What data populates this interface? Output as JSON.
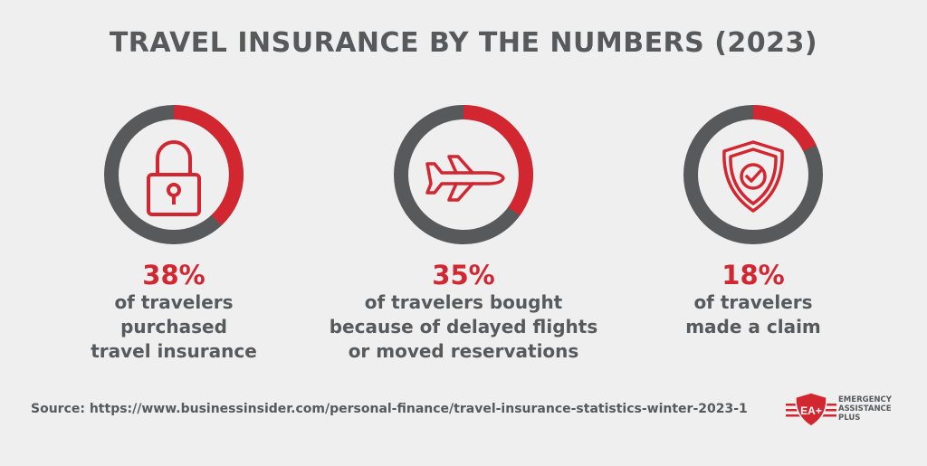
{
  "title": "TRAVEL INSURANCE BY THE NUMBERS (2023)",
  "colors": {
    "accent": "#d22631",
    "ring": "#57595b",
    "text": "#57595b",
    "background": "#efefef"
  },
  "chart_data": [
    {
      "type": "pie",
      "value_percent": 38,
      "label": "38%",
      "description": [
        "of travelers",
        "purchased",
        "travel insurance"
      ],
      "icon": "padlock-icon"
    },
    {
      "type": "pie",
      "value_percent": 35,
      "label": "35%",
      "description": [
        "of travelers bought",
        "because of delayed flights",
        "or moved reservations"
      ],
      "icon": "airplane-icon"
    },
    {
      "type": "pie",
      "value_percent": 18,
      "label": "18%",
      "description": [
        "of travelers",
        "made a claim"
      ],
      "icon": "shield-check-icon"
    }
  ],
  "source": "Source: https://www.businessinsider.com/personal-finance/travel-insurance-statistics-winter-2023-1",
  "logo": {
    "mark": "EA+",
    "lines": [
      "EMERGENCY",
      "ASSISTANCE",
      "PLUS"
    ]
  }
}
